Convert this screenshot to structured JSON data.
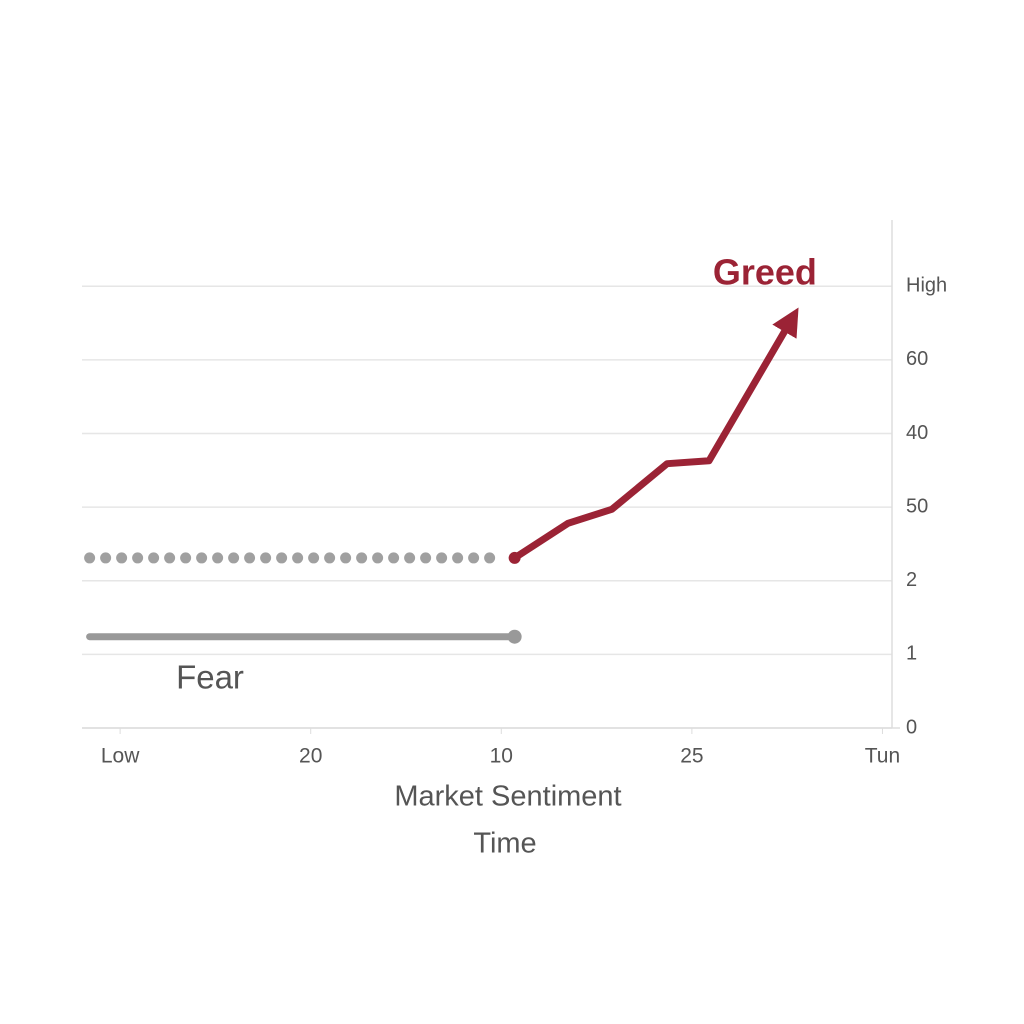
{
  "chart_data": {
    "type": "line",
    "x_label": "Market Sentiment",
    "y_label": "Time",
    "xlim": [
      -0.2,
      4.05
    ],
    "xticks": [
      0,
      {
        "value": 1,
        "label": "20"
      },
      {
        "value": 2,
        "label": "10"
      },
      {
        "value": 3,
        "label": "25"
      },
      4
    ],
    "xtick_labels": [
      "Low",
      null,
      null,
      null,
      "Tun"
    ],
    "ylim": [
      0,
      6.9
    ],
    "yticks": [
      0,
      1,
      2,
      {
        "value": 3,
        "label": "50"
      },
      {
        "value": 4,
        "label": "40"
      },
      {
        "value": 5,
        "label": "60"
      },
      {
        "value": 6,
        "label": "High"
      }
    ],
    "grid": true,
    "series": [
      {
        "name": "Greed",
        "color": "#9b2335",
        "style": "solid",
        "arrow": true,
        "x": [
          2.07,
          2.35,
          2.58,
          2.87,
          3.09,
          3.53
        ],
        "values": [
          2.31,
          2.78,
          2.97,
          3.59,
          3.63,
          5.58
        ]
      },
      {
        "name": "Fear",
        "color": "#999999",
        "style": "solid",
        "x": [
          -0.16,
          2.07
        ],
        "values": [
          1.24,
          1.24
        ]
      },
      {
        "color": "#a0a0a0",
        "style": "dotted",
        "x": [
          -0.16,
          1.99
        ],
        "values": [
          2.31,
          2.31
        ]
      }
    ]
  }
}
